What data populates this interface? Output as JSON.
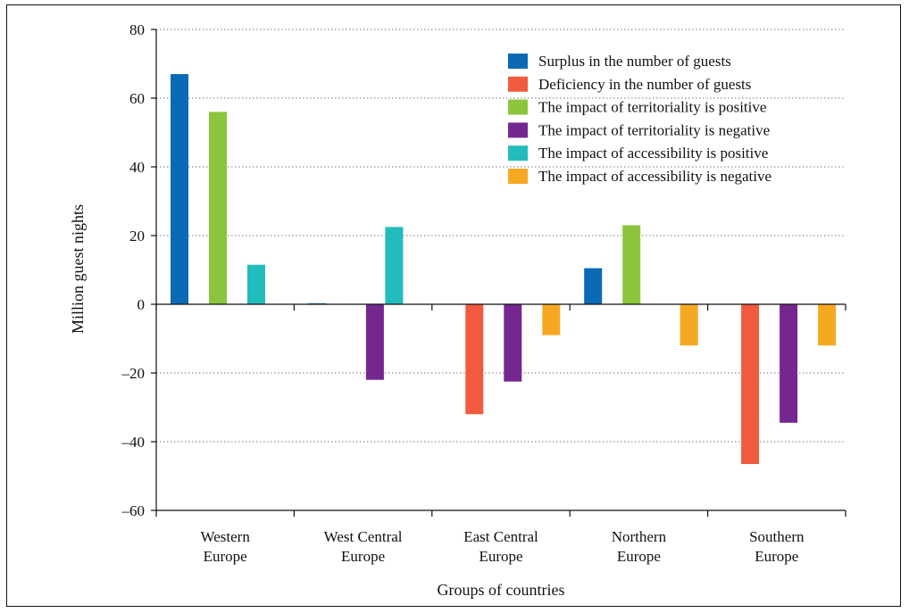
{
  "chart_data": {
    "type": "bar",
    "xlabel": "Groups of countries",
    "ylabel": "Million guest nights",
    "ylim": [
      -60,
      80
    ],
    "yticks": [
      80,
      60,
      40,
      20,
      0,
      -20,
      -40,
      -60
    ],
    "ytick_labels": [
      "80",
      "60",
      "40",
      "20",
      "0",
      "–20",
      "–40",
      "–60"
    ],
    "grid": "horizontal dotted",
    "legend_position": "top-right",
    "categories": [
      [
        "Western",
        "Europe"
      ],
      [
        "West Central",
        "Europe"
      ],
      [
        "East Central",
        "Europe"
      ],
      [
        "Northern",
        "Europe"
      ],
      [
        "Southern",
        "Europe"
      ]
    ],
    "series": [
      {
        "name": "Surplus in the number of guests",
        "color": "#0a6ab5",
        "values": [
          67,
          0.3,
          0,
          10.5,
          0
        ]
      },
      {
        "name": "Deficiency in the number of guests",
        "color": "#f05a3e",
        "values": [
          0,
          0,
          -32,
          0,
          -46.5
        ]
      },
      {
        "name": "The impact of territoriality is positive",
        "color": "#8cc43c",
        "values": [
          56,
          0,
          0,
          23,
          0
        ]
      },
      {
        "name": "The impact of territoriality is negative",
        "color": "#74288f",
        "values": [
          0,
          -22,
          -22.5,
          0,
          -34.5
        ]
      },
      {
        "name": "The impact of accessibility is positive",
        "color": "#22bcbc",
        "values": [
          11.5,
          22.5,
          0,
          0,
          0
        ]
      },
      {
        "name": "The impact of accessibility is negative",
        "color": "#f7a823",
        "values": [
          0,
          0,
          -9,
          -12,
          -12
        ]
      }
    ]
  }
}
